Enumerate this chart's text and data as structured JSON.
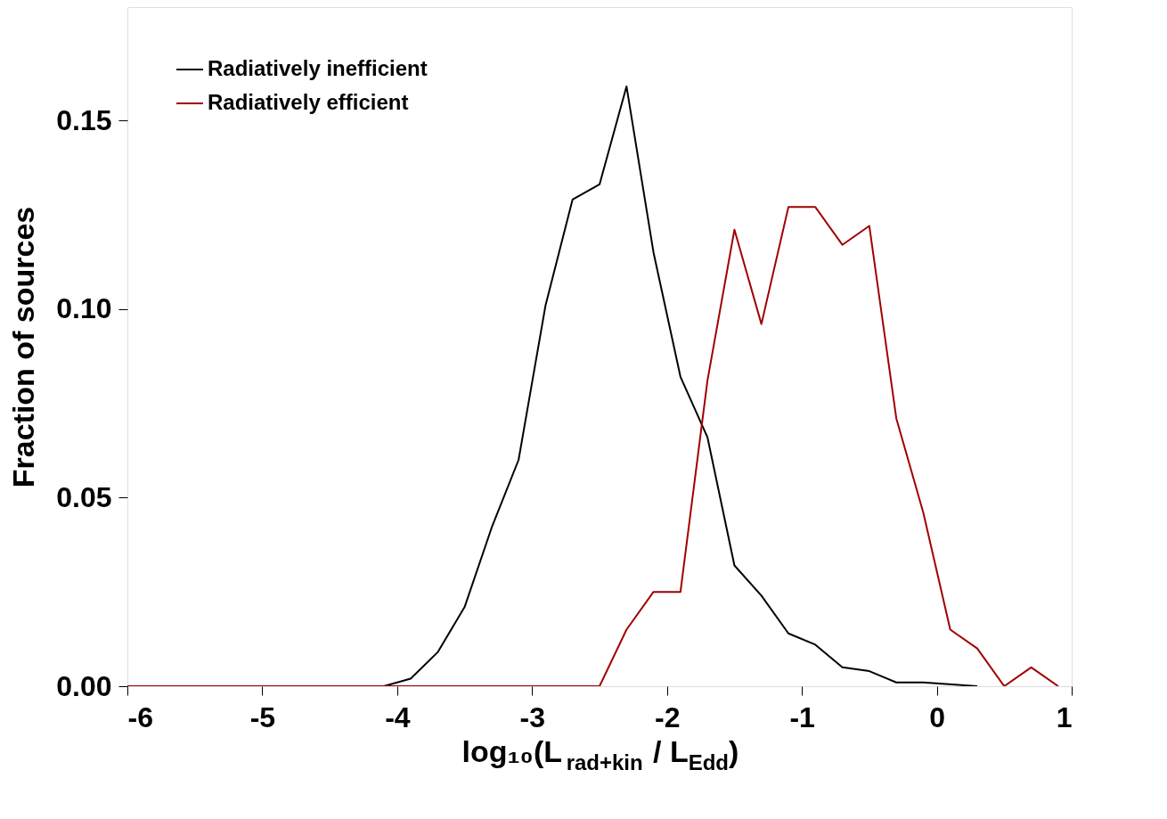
{
  "chart_data": {
    "type": "line",
    "xlabel": "log₁₀(L$_{rad+kin}$ / L$_{Edd}$)",
    "ylabel": "Fraction of sources",
    "xlim": [
      -6,
      1
    ],
    "xticks": [
      -6,
      -5,
      -4,
      -3,
      -2,
      -1,
      0,
      1
    ],
    "ylim": [
      0,
      0.18
    ],
    "yticks": [
      {
        "value": 0,
        "label": "0.00"
      },
      {
        "value": 0.05,
        "label": "0.05"
      },
      {
        "value": 0.1,
        "label": "0.10"
      },
      {
        "value": 0.15,
        "label": "0.15"
      }
    ],
    "grid": false,
    "legend": "top left",
    "marker": "none",
    "line_style": "solid",
    "series": [
      {
        "name": "Radiatively inefficient",
        "color": "#000000",
        "x": [
          -4.3,
          -4.1,
          -3.9,
          -3.7,
          -3.5,
          -3.3,
          -3.1,
          -2.9,
          -2.7,
          -2.5,
          -2.3,
          -2.1,
          -1.9,
          -1.7,
          -1.5,
          -1.3,
          -1.1,
          -0.9,
          -0.7,
          -0.5,
          -0.3,
          -0.1,
          0.3
        ],
        "values": [
          0,
          0,
          0.002,
          0.009,
          0.021,
          0.042,
          0.06,
          0.101,
          0.129,
          0.133,
          0.159,
          0.115,
          0.082,
          0.066,
          0.032,
          0.024,
          0.014,
          0.011,
          0.005,
          0.004,
          0.001,
          0.001,
          0
        ]
      },
      {
        "name": "Radiatively efficient",
        "color": "#a00000",
        "x": [
          -6,
          -2.5,
          -2.3,
          -2.1,
          -1.9,
          -1.7,
          -1.5,
          -1.3,
          -1.1,
          -0.9,
          -0.7,
          -0.5,
          -0.3,
          -0.1,
          0.1,
          0.3,
          0.5,
          0.7,
          0.9
        ],
        "values": [
          0,
          0,
          0.015,
          0.025,
          0.025,
          0.081,
          0.121,
          0.096,
          0.127,
          0.127,
          0.117,
          0.122,
          0.071,
          0.046,
          0.015,
          0.01,
          0,
          0.005,
          0
        ]
      }
    ]
  }
}
